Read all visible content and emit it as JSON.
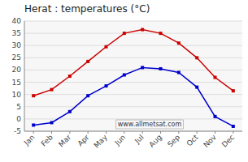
{
  "chart_data": {
    "type": "line",
    "title": "Herat : temperatures (°C)",
    "categories": [
      "Jan",
      "Feb",
      "Mar",
      "Apr",
      "May",
      "Jun",
      "Jul",
      "Aug",
      "Sep",
      "Oct",
      "Nov",
      "Dec"
    ],
    "series": [
      {
        "color": "#cc0000",
        "marker": "square",
        "values": [
          9.5,
          12,
          17.5,
          23.5,
          29.5,
          35,
          36.5,
          35,
          31,
          25,
          17,
          11.5
        ]
      },
      {
        "color": "#0000cc",
        "marker": "square",
        "values": [
          -2.5,
          -1.5,
          3,
          9.5,
          13.5,
          18,
          21,
          20.5,
          19,
          13,
          1,
          -3
        ]
      }
    ],
    "ylim": [
      -5,
      40
    ],
    "yticks": [
      -5,
      0,
      5,
      10,
      15,
      20,
      25,
      30,
      35,
      40
    ],
    "grid": true,
    "annotations": [
      "www.allmetsat.com"
    ]
  }
}
